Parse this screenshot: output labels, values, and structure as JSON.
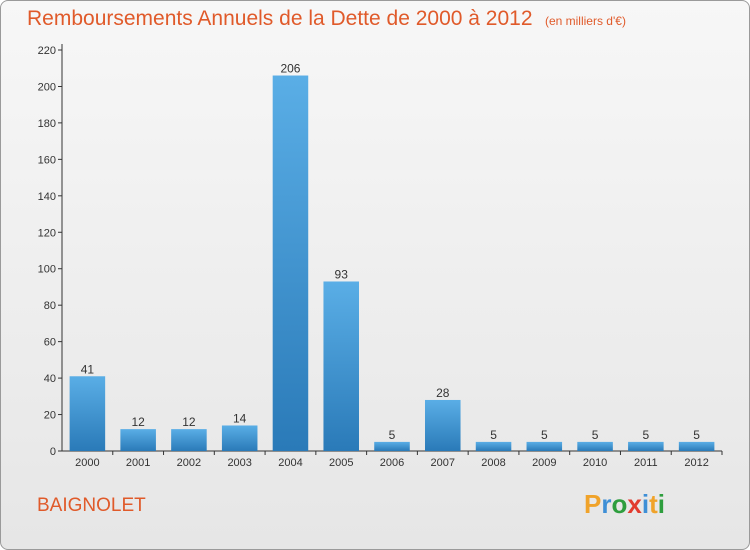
{
  "title": "Remboursements Annuels de la Dette de 2000 à 2012",
  "subtitle": "(en milliers d'€)",
  "commune": "BAIGNOLET",
  "logo": {
    "letters": [
      "P",
      "r",
      "o",
      "x",
      "i",
      "t",
      "i"
    ],
    "colors": [
      "#f0a32a",
      "#3e8fd6",
      "#2e9e3e",
      "#e23b2e",
      "#3e8fd6",
      "#f0a32a",
      "#2e9e3e"
    ]
  },
  "colors": {
    "title": "#e05a2a",
    "bar_top": "#5aaee6",
    "bar_bottom": "#2a7ab8",
    "axis": "#333333"
  },
  "chart_data": {
    "type": "bar",
    "title": "Remboursements Annuels de la Dette de 2000 à 2012",
    "subtitle": "(en milliers d'€)",
    "categories": [
      "2000",
      "2001",
      "2002",
      "2003",
      "2004",
      "2005",
      "2006",
      "2007",
      "2008",
      "2009",
      "2010",
      "2011",
      "2012"
    ],
    "values": [
      41,
      12,
      12,
      14,
      206,
      93,
      5,
      28,
      5,
      5,
      5,
      5,
      5
    ],
    "ylim": [
      0,
      220
    ],
    "yticks": [
      0,
      20,
      40,
      60,
      80,
      100,
      120,
      140,
      160,
      180,
      200,
      220
    ],
    "grid": false,
    "xlabel": "",
    "ylabel": ""
  }
}
